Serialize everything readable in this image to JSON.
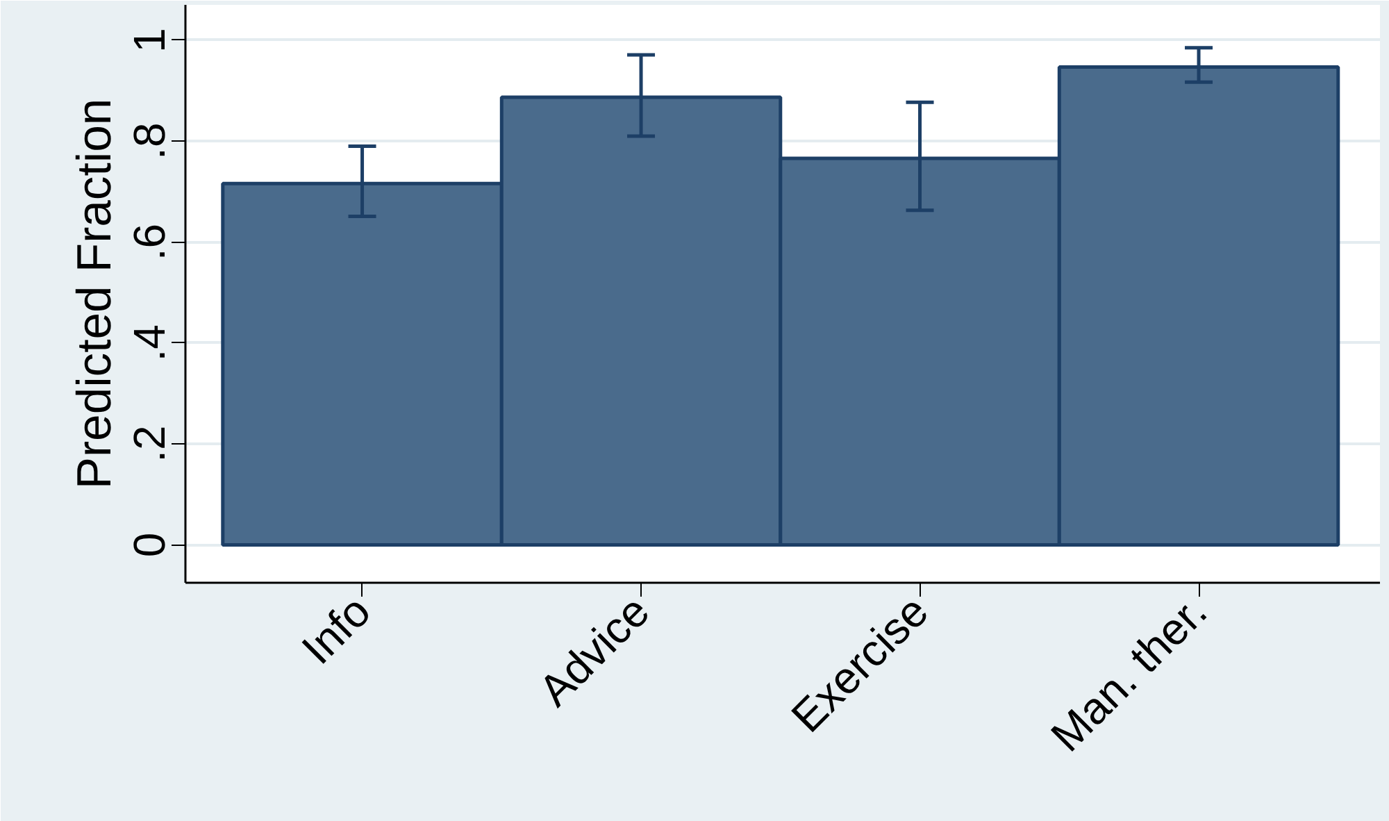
{
  "chart_data": {
    "type": "bar",
    "ylabel": "Predicted Fraction",
    "categories": [
      "Info",
      "Advice",
      "Exercise",
      "Man. ther."
    ],
    "values": [
      0.716,
      0.887,
      0.766,
      0.947
    ],
    "errors": [
      [
        0.651,
        0.79
      ],
      [
        0.81,
        0.971
      ],
      [
        0.663,
        0.877
      ],
      [
        0.917,
        0.985
      ]
    ],
    "color": "#4a6b8c",
    "ylim": [
      -0.075,
      1.07
    ],
    "yticks": [
      0,
      {
        "value": 0.2,
        "label": ".2"
      },
      {
        "value": 0.4,
        "label": ".4"
      },
      {
        "value": 0.6,
        "label": ".6"
      },
      {
        "value": 0.8,
        "label": ".8"
      },
      1
    ],
    "grid": "y"
  }
}
